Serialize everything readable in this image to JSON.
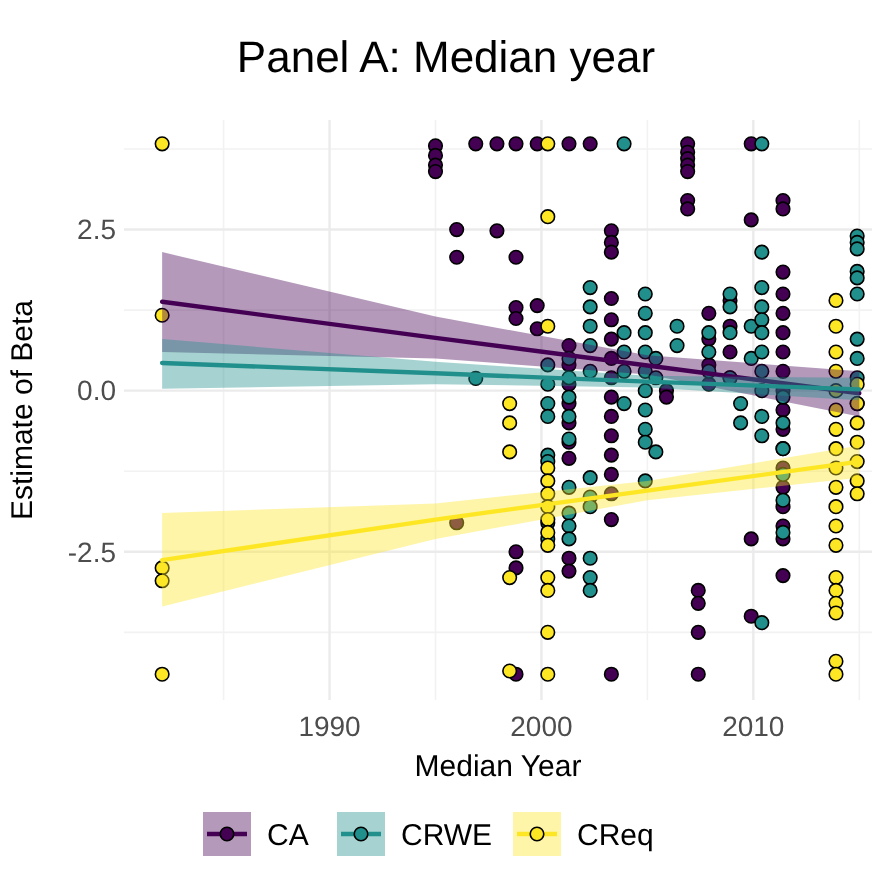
{
  "chart_data": {
    "type": "scatter",
    "title": "Panel A: Median year",
    "xlabel": "Median Year",
    "ylabel": "Estimate of Beta",
    "xlim": [
      1980.3,
      2015.6
    ],
    "xticks": [
      1990,
      2000,
      2010
    ],
    "ylim": [
      -4.8,
      4.2
    ],
    "yticks": [
      -2.5,
      {
        "value": 0,
        "label": "0.0"
      },
      2.5
    ],
    "grid": true,
    "legend": "bottom",
    "marker": "circle",
    "series": [
      {
        "name": "CA",
        "color": "#440154",
        "x": [
          1995,
          1995,
          1995,
          1995,
          1996,
          1996,
          1996,
          1996.9,
          1997.9,
          1997.9,
          1998.8,
          1998.8,
          1998.8,
          1998.8,
          1998.8,
          1998.8,
          1998.8,
          1999.8,
          1999.8,
          1999.8,
          2001.3,
          2001.3,
          2001.3,
          2001.3,
          2001.3,
          2001.3,
          2001.3,
          2001.3,
          2001.3,
          2001.3,
          2002.3,
          2003.3,
          2003.3,
          2003.3,
          2003.3,
          2003.3,
          2003.3,
          2003.3,
          2003.3,
          2003.3,
          2003.3,
          2003.3,
          2003.3,
          2003.3,
          2003.3,
          2003.3,
          2003.3,
          2005.9,
          2005.9,
          2006.9,
          2006.9,
          2006.9,
          2006.9,
          2006.9,
          2006.9,
          2006.9,
          2007.4,
          2007.4,
          2007.4,
          2007.4,
          2007.9,
          2007.9,
          2007.9,
          2007.9,
          2008.9,
          2008.9,
          2008.9,
          2008.9,
          2009.9,
          2009.9,
          2009.9,
          2009.9,
          2011.4,
          2011.4,
          2011.4,
          2011.4,
          2011.4,
          2011.4,
          2011.4,
          2011.4,
          2011.4,
          2011.4,
          2011.4,
          2011.4,
          2011.4,
          2011.4,
          2011.4,
          2011.4,
          2011.4,
          2011.4
        ],
        "values": [
          3.8,
          3.65,
          3.5,
          3.4,
          2.5,
          2.07,
          -2.05,
          3.83,
          3.83,
          2.48,
          3.83,
          2.07,
          1.29,
          1.12,
          -2.5,
          -2.75,
          -4.4,
          3.83,
          1.32,
          0.96,
          3.83,
          0.7,
          0.4,
          0.1,
          -0.2,
          -0.5,
          -0.8,
          -1.05,
          -2.6,
          -2.8,
          3.83,
          2.48,
          2.3,
          2.15,
          1.43,
          1.1,
          0.8,
          0.5,
          0.2,
          -0.1,
          -0.4,
          -0.7,
          -1.0,
          -1.3,
          -1.6,
          -2.0,
          -4.4,
          0.0,
          -0.1,
          3.83,
          3.7,
          3.6,
          3.5,
          3.4,
          2.95,
          2.82,
          -3.1,
          -3.3,
          -3.75,
          -4.4,
          1.2,
          0.8,
          0.4,
          0.1,
          1.4,
          1.0,
          0.6,
          0.2,
          3.83,
          2.65,
          -2.3,
          -3.5,
          2.95,
          2.82,
          1.84,
          1.5,
          1.2,
          0.9,
          0.6,
          0.3,
          0.0,
          -0.3,
          -0.6,
          -0.9,
          -1.2,
          -1.5,
          -1.8,
          -2.1,
          -2.3,
          -2.87
        ]
      },
      {
        "name": "CRWE",
        "color": "#21908c",
        "x": [
          1996.9,
          2000.3,
          2000.3,
          2000.3,
          2000.3,
          2000.3,
          2000.3,
          2000.3,
          2000.3,
          2001.3,
          2001.3,
          2001.3,
          2001.3,
          2001.3,
          2001.3,
          2001.3,
          2001.3,
          2001.3,
          2002.3,
          2002.3,
          2002.3,
          2002.3,
          2002.3,
          2002.3,
          2002.3,
          2002.3,
          2002.3,
          2002.3,
          2002.3,
          2003.9,
          2003.9,
          2003.9,
          2003.9,
          2003.9,
          2004.9,
          2004.9,
          2004.9,
          2004.9,
          2004.9,
          2004.9,
          2004.9,
          2004.9,
          2004.9,
          2004.9,
          2005.4,
          2005.4,
          2005.4,
          2006.4,
          2006.4,
          2007.9,
          2007.9,
          2007.9,
          2008.9,
          2008.9,
          2008.9,
          2008.9,
          2009.4,
          2009.4,
          2009.9,
          2009.9,
          2010.4,
          2010.4,
          2010.4,
          2010.4,
          2010.4,
          2010.4,
          2010.4,
          2010.4,
          2010.4,
          2010.4,
          2010.4,
          2010.4,
          2011.4,
          2011.4,
          2011.4,
          2011.4,
          2011.4,
          2011.4,
          2014.9,
          2014.9,
          2014.9,
          2014.9,
          2014.9,
          2014.9,
          2014.9,
          2014.9,
          2014.9,
          2014.9
        ],
        "values": [
          0.19,
          0.4,
          0.1,
          -0.2,
          -0.4,
          -1.0,
          -1.1,
          -2.05,
          -2.3,
          0.5,
          0.2,
          -0.1,
          -0.4,
          -0.75,
          -1.5,
          -1.9,
          -2.1,
          -2.3,
          1.6,
          1.3,
          1.0,
          0.7,
          0.3,
          -1.35,
          -1.65,
          -1.8,
          -2.6,
          -2.9,
          -3.1,
          3.83,
          0.9,
          0.6,
          0.3,
          -0.2,
          1.5,
          1.2,
          0.9,
          0.6,
          0.3,
          0.0,
          -0.3,
          -0.6,
          -0.8,
          -1.4,
          0.5,
          0.2,
          -0.95,
          1.0,
          0.7,
          0.9,
          0.6,
          0.3,
          1.5,
          1.3,
          0.9,
          0.2,
          -0.2,
          -0.5,
          1.0,
          0.5,
          3.83,
          2.15,
          1.6,
          1.3,
          1.1,
          0.9,
          0.6,
          0.3,
          0.0,
          -0.4,
          -0.7,
          -3.6,
          -0.1,
          -0.5,
          -0.9,
          -1.3,
          -1.7,
          -2.2,
          2.4,
          2.3,
          2.2,
          1.85,
          1.75,
          1.5,
          0.8,
          0.5,
          0.2,
          -0.2
        ]
      },
      {
        "name": "CReq",
        "color": "#fde725",
        "x": [
          1982.1,
          1982.1,
          1982.1,
          1982.1,
          1982.1,
          1998.5,
          1998.5,
          1998.5,
          1998.5,
          1998.5,
          2000.3,
          2000.3,
          2000.3,
          2000.3,
          2000.3,
          2000.3,
          2000.3,
          2000.3,
          2000.3,
          2000.3,
          2000.3,
          2000.3,
          2000.3,
          2000.3,
          2013.9,
          2013.9,
          2013.9,
          2013.9,
          2013.9,
          2013.9,
          2013.9,
          2013.9,
          2013.9,
          2013.9,
          2013.9,
          2013.9,
          2013.9,
          2013.9,
          2013.9,
          2013.9,
          2013.9,
          2013.9,
          2013.9,
          2014.9,
          2014.9,
          2014.9,
          2014.9,
          2014.9,
          2014.9,
          2014.9
        ],
        "values": [
          3.83,
          1.17,
          -2.75,
          -2.95,
          -4.4,
          -0.2,
          -0.5,
          -0.95,
          -2.9,
          -4.35,
          3.83,
          2.7,
          1.0,
          -1.2,
          -1.4,
          -1.6,
          -1.8,
          -2.0,
          -2.2,
          -2.4,
          -2.9,
          -3.1,
          -3.75,
          -4.4,
          1.4,
          1.0,
          0.6,
          0.3,
          0.0,
          -0.3,
          -0.6,
          -0.9,
          -1.2,
          -1.5,
          -1.8,
          -2.1,
          -2.4,
          -2.9,
          -3.1,
          -3.3,
          -3.45,
          -4.2,
          -4.4,
          0.1,
          -0.2,
          -0.5,
          -0.8,
          -1.1,
          -1.4,
          -1.6
        ]
      },
      {
        "type": "line",
        "marker": "none",
        "color": "#440154",
        "x": [
          1982.1,
          1995,
          2005,
          2015
        ],
        "values": [
          1.38,
          0.82,
          0.39,
          -0.04
        ],
        "lower": [
          0.6,
          0.5,
          0.25,
          -0.4
        ],
        "upper": [
          2.15,
          1.15,
          0.55,
          0.3
        ]
      },
      {
        "type": "line",
        "marker": "none",
        "color": "#21908c",
        "x": [
          1982.1,
          1995,
          2005,
          2015
        ],
        "values": [
          0.43,
          0.27,
          0.14,
          0.02
        ],
        "lower": [
          0.03,
          0.1,
          0.05,
          -0.15
        ],
        "upper": [
          0.8,
          0.45,
          0.23,
          0.2
        ]
      },
      {
        "type": "line",
        "marker": "none",
        "color": "#fde725",
        "x": [
          1982.1,
          1995,
          2005,
          2015
        ],
        "values": [
          -2.63,
          -2.0,
          -1.55,
          -1.1
        ],
        "lower": [
          -3.35,
          -2.3,
          -1.7,
          -1.35
        ],
        "upper": [
          -1.9,
          -1.75,
          -1.4,
          -0.85
        ]
      }
    ]
  }
}
